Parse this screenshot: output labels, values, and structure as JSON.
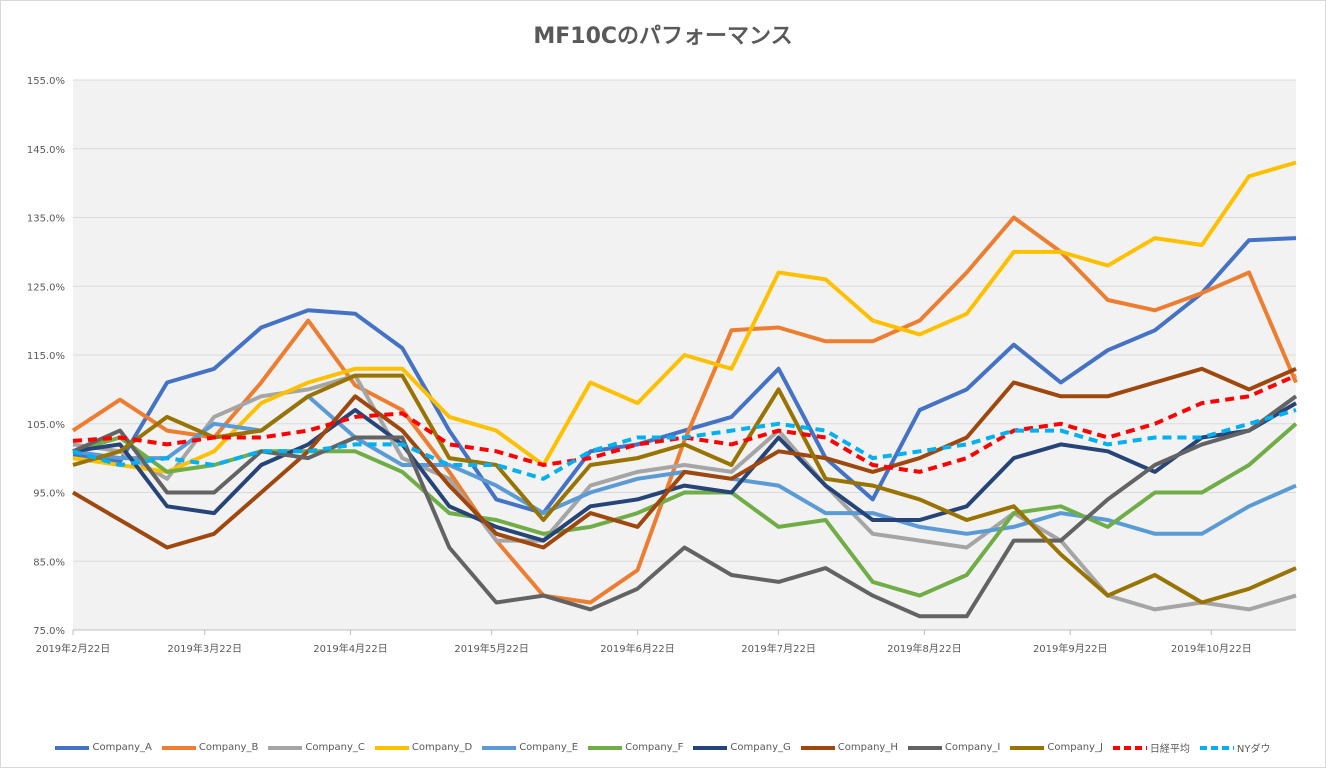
{
  "chart_data": {
    "type": "line",
    "title": "MF10Cのパフォーマンス",
    "xlabel": "",
    "ylabel": "",
    "ylim": [
      75,
      155
    ],
    "yticks": [
      "75.0%",
      "85.0%",
      "95.0%",
      "105.0%",
      "115.0%",
      "125.0%",
      "135.0%",
      "145.0%",
      "155.0%"
    ],
    "ytick_values": [
      75,
      85,
      95,
      105,
      115,
      125,
      135,
      145,
      155
    ],
    "xlim": [
      "2019-02-22",
      "2019-11-09"
    ],
    "xticks": [
      {
        "date": "2019-02-22",
        "label": "2019年2月22日"
      },
      {
        "date": "2019-03-22",
        "label": "2019年3月22日"
      },
      {
        "date": "2019-04-22",
        "label": "2019年4月22日"
      },
      {
        "date": "2019-05-22",
        "label": "2019年5月22日"
      },
      {
        "date": "2019-06-22",
        "label": "2019年6月22日"
      },
      {
        "date": "2019-07-22",
        "label": "2019年7月22日"
      },
      {
        "date": "2019-08-22",
        "label": "2019年8月22日"
      },
      {
        "date": "2019-09-22",
        "label": "2019年9月22日"
      },
      {
        "date": "2019-10-22",
        "label": "2019年10月22日"
      }
    ],
    "grid": true,
    "legend": "bottom",
    "x": [
      "2019-02-22",
      "2019-03-04",
      "2019-03-14",
      "2019-03-24",
      "2019-04-03",
      "2019-04-13",
      "2019-04-23",
      "2019-05-03",
      "2019-05-13",
      "2019-05-23",
      "2019-06-02",
      "2019-06-12",
      "2019-06-22",
      "2019-07-02",
      "2019-07-12",
      "2019-07-22",
      "2019-08-01",
      "2019-08-11",
      "2019-08-21",
      "2019-08-31",
      "2019-09-10",
      "2019-09-20",
      "2019-09-30",
      "2019-10-10",
      "2019-10-20",
      "2019-10-30",
      "2019-11-09"
    ],
    "series": [
      {
        "name": "Company_A",
        "color": "#4472C4",
        "dash": false,
        "values": [
          100.5,
          99.5,
          111,
          113,
          119,
          121.5,
          121,
          116,
          104,
          94,
          92,
          101,
          102,
          104,
          106,
          113,
          100,
          94,
          107,
          110,
          116.5,
          111,
          115.7,
          118.6,
          124,
          131.7,
          132
        ]
      },
      {
        "name": "Company_B",
        "color": "#ED7D31",
        "dash": false,
        "values": [
          104,
          108.5,
          104,
          103,
          111,
          120,
          110.6,
          107,
          98,
          88,
          80,
          79,
          83.7,
          102.6,
          118.6,
          119,
          117,
          117,
          120,
          127,
          135,
          130,
          123,
          121.5,
          124,
          127,
          111
        ]
      },
      {
        "name": "Company_C",
        "color": "#A5A5A5",
        "dash": false,
        "values": [
          102,
          101,
          97,
          106,
          109,
          110,
          112,
          100,
          97,
          88,
          88,
          96,
          98,
          99,
          98,
          104,
          96,
          89,
          88,
          87,
          92,
          88,
          80,
          78,
          79,
          78,
          80
        ]
      },
      {
        "name": "Company_D",
        "color": "#FFC000",
        "dash": false,
        "values": [
          100,
          99,
          98,
          101,
          108,
          111,
          113,
          113,
          106,
          104,
          99,
          111,
          108,
          115,
          113,
          127,
          126,
          120,
          118,
          121,
          130,
          130,
          128,
          132,
          131,
          141,
          143
        ]
      },
      {
        "name": "Company_E",
        "color": "#5B9BD5",
        "dash": false,
        "values": [
          101,
          100,
          100,
          105,
          104,
          109,
          103,
          99,
          99,
          96,
          92,
          95,
          97,
          98,
          97,
          96,
          92,
          92,
          90,
          89,
          90,
          92,
          91,
          89,
          89,
          93,
          96
        ]
      },
      {
        "name": "Company_F",
        "color": "#70AD47",
        "dash": false,
        "values": [
          101,
          103,
          98,
          99,
          101,
          101,
          101,
          98,
          92,
          91,
          89,
          90,
          92,
          95,
          95,
          90,
          91,
          82,
          80,
          83,
          92,
          93,
          90,
          95,
          95,
          99,
          105
        ]
      },
      {
        "name": "Company_G",
        "color": "#264478",
        "dash": false,
        "values": [
          101,
          102,
          93,
          92,
          99,
          102,
          107,
          102,
          93,
          90,
          88,
          93,
          94,
          96,
          95,
          103,
          96,
          91,
          91,
          93,
          100,
          102,
          101,
          98,
          103,
          104,
          108
        ]
      },
      {
        "name": "Company_H",
        "color": "#9E480E",
        "dash": false,
        "values": [
          95,
          91,
          87,
          89,
          95,
          101,
          109,
          104,
          96,
          89,
          87,
          92,
          90,
          98,
          97,
          101,
          100,
          98,
          100,
          103,
          111,
          109,
          109,
          111,
          113,
          110,
          113
        ]
      },
      {
        "name": "Company_I",
        "color": "#636363",
        "dash": false,
        "values": [
          101,
          104,
          95,
          95,
          101,
          100,
          103,
          103,
          87,
          79,
          80,
          78,
          81,
          87,
          83,
          82,
          84,
          80,
          77,
          77,
          88,
          88,
          94,
          99,
          102,
          104,
          109
        ]
      },
      {
        "name": "Company_J",
        "color": "#997300",
        "dash": false,
        "values": [
          99,
          101,
          106,
          103,
          104,
          109,
          112,
          112,
          100,
          99,
          91,
          99,
          100,
          102,
          99,
          110,
          97,
          96,
          94,
          91,
          93,
          86,
          80,
          83,
          79,
          81,
          84
        ]
      },
      {
        "name": "日経平均",
        "color": "#FF0000",
        "dash": true,
        "values": [
          102.5,
          103,
          102,
          103,
          103,
          104,
          106,
          106.5,
          102,
          101,
          99,
          100,
          102,
          103,
          102,
          104,
          103,
          99,
          98,
          100,
          104,
          105,
          103,
          105,
          108,
          109,
          112
        ]
      },
      {
        "name": "NYダウ",
        "color": "#00B0F0",
        "dash": true,
        "values": [
          101,
          99,
          100,
          99,
          101,
          101,
          102,
          102,
          99,
          99,
          97,
          101,
          103,
          103,
          104,
          105,
          104,
          100,
          101,
          102,
          104,
          104,
          102,
          103,
          103,
          105,
          107
        ]
      }
    ]
  }
}
